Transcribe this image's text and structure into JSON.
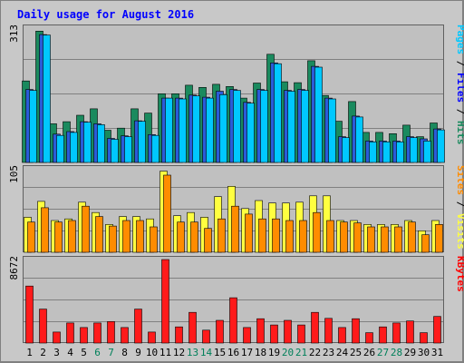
{
  "chart_data": {
    "type": "bar",
    "title": "Daily usage for August 2016",
    "categories": [
      "1",
      "2",
      "3",
      "4",
      "5",
      "6",
      "7",
      "8",
      "9",
      "10",
      "11",
      "12",
      "13",
      "14",
      "15",
      "16",
      "17",
      "18",
      "19",
      "20",
      "21",
      "22",
      "23",
      "24",
      "25",
      "26",
      "27",
      "28",
      "29",
      "30",
      "31"
    ],
    "weekend_days": [
      "6",
      "7",
      "13",
      "14",
      "20",
      "21",
      "27",
      "28"
    ],
    "panels": [
      {
        "name": "top",
        "max_label": "313",
        "ylim": [
          0,
          313
        ],
        "right_label": [
          "Pages",
          " / ",
          "Files",
          " / ",
          "Hits"
        ],
        "right_label_colors": [
          "#00c8ff",
          "#000000",
          "#0000ff",
          "#000000",
          "#1a8a5e"
        ],
        "series": [
          {
            "name": "Hits",
            "color": "#1a8a5e",
            "values": [
              190,
              306,
              90,
              95,
              110,
              125,
              75,
              80,
              125,
              115,
              160,
              160,
              180,
              175,
              182,
              177,
              150,
              185,
              252,
              188,
              186,
              237,
              156,
              96,
              142,
              70,
              70,
              67,
              87,
              60,
              92
            ]
          },
          {
            "name": "Files",
            "color": "#2b5bd8",
            "values": [
              170,
              298,
              66,
              72,
              95,
              90,
              56,
              62,
              97,
              65,
              150,
              150,
              157,
              152,
              166,
              170,
              140,
              170,
              232,
              168,
              170,
              224,
              150,
              60,
              108,
              50,
              50,
              50,
              60,
              55,
              78
            ]
          },
          {
            "name": "Pages",
            "color": "#00c8ff",
            "values": [
              168,
              297,
              63,
              70,
              94,
              88,
              54,
              60,
              96,
              63,
              150,
              148,
              155,
              150,
              158,
              168,
              138,
              168,
              230,
              166,
              168,
              222,
              148,
              58,
              106,
              48,
              48,
              48,
              58,
              50,
              76
            ]
          }
        ]
      },
      {
        "name": "middle",
        "max_label": "105",
        "ylim": [
          0,
          105
        ],
        "right_label": [
          "Sites",
          " / ",
          "Visits"
        ],
        "right_label_colors": [
          "#ff8c00",
          "#000000",
          "#ffff40"
        ],
        "series": [
          {
            "name": "Visits",
            "color": "#ffff40",
            "values": [
              44,
              64,
              40,
              42,
              63,
              50,
              35,
              45,
              45,
              42,
              102,
              46,
              50,
              44,
              70,
              83,
              55,
              65,
              62,
              62,
              63,
              71,
              71,
              40,
              40,
              35,
              35,
              35,
              40,
              27,
              40
            ]
          },
          {
            "name": "Sites",
            "color": "#ff8c00",
            "values": [
              38,
              56,
              38,
              40,
              58,
              45,
              33,
              40,
              40,
              32,
              97,
              38,
              38,
              30,
              42,
              58,
              48,
              42,
              42,
              40,
              40,
              50,
              40,
              38,
              37,
              32,
              32,
              32,
              38,
              22,
              35
            ]
          }
        ]
      },
      {
        "name": "bottom",
        "max_label": "8672",
        "ylim": [
          0,
          8672
        ],
        "right_label": [
          "KBytes"
        ],
        "right_label_colors": [
          "#ff0000"
        ],
        "series": [
          {
            "name": "KBytes",
            "color": "#ff1a1a",
            "values": [
              5920,
              3530,
              1140,
              2080,
              1610,
              2080,
              2230,
              1610,
              3530,
              1140,
              8672,
              1680,
              3190,
              1340,
              2360,
              4700,
              1610,
              2530,
              1880,
              2360,
              1880,
              3190,
              2560,
              1610,
              2530,
              1070,
              1680,
              2080,
              2290,
              1070,
              2760
            ]
          }
        ]
      }
    ]
  }
}
